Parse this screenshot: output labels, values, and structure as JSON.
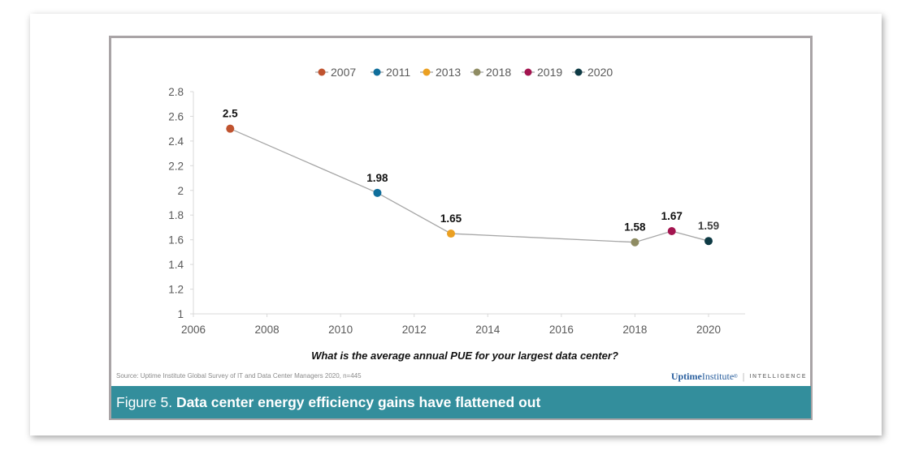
{
  "chart_data": {
    "type": "scatter",
    "title": "",
    "xlabel": "What is the average annual PUE for your largest data center?",
    "ylabel": "",
    "xlim": [
      2006,
      2020
    ],
    "ylim": [
      1,
      2.8
    ],
    "x_ticks": [
      "2006",
      "2008",
      "2010",
      "2012",
      "2014",
      "2016",
      "2018",
      "2020"
    ],
    "x_tick_values": [
      2006,
      2008,
      2010,
      2012,
      2014,
      2016,
      2018,
      2020
    ],
    "y_ticks": [
      "1",
      "1.2",
      "1.4",
      "1.6",
      "1.8",
      "2",
      "2.2",
      "2.4",
      "2.6",
      "2.8"
    ],
    "y_tick_values": [
      1,
      1.2,
      1.4,
      1.6,
      1.8,
      2,
      2.2,
      2.4,
      2.6,
      2.8
    ],
    "grid": false,
    "legend_position": "top-center",
    "connector_line_color": "#a6a6a6",
    "series": [
      {
        "name": "2007",
        "x": 2007,
        "y": 2.5,
        "label": "2.5",
        "color": "#c0532f"
      },
      {
        "name": "2011",
        "x": 2011,
        "y": 1.98,
        "label": "1.98",
        "color": "#0f6e9b"
      },
      {
        "name": "2013",
        "x": 2013,
        "y": 1.65,
        "label": "1.65",
        "color": "#eba022"
      },
      {
        "name": "2018",
        "x": 2018,
        "y": 1.58,
        "label": "1.58",
        "color": "#8f8c63"
      },
      {
        "name": "2019",
        "x": 2019,
        "y": 1.67,
        "label": "1.67",
        "color": "#a3144f"
      },
      {
        "name": "2020",
        "x": 2020,
        "y": 1.59,
        "label": "1.59",
        "color": "#0e3a44"
      }
    ]
  },
  "source_text": "Source: Uptime Institute Global Survey of IT and Data Center Managers 2020, n=445",
  "brand": {
    "uptime": "Uptime",
    "institute": "Institute",
    "trademark": "®",
    "intelligence": "INTELLIGENCE"
  },
  "caption": {
    "prefix": "Figure 5. ",
    "title": "Data center energy efficiency gains have flattened out"
  }
}
